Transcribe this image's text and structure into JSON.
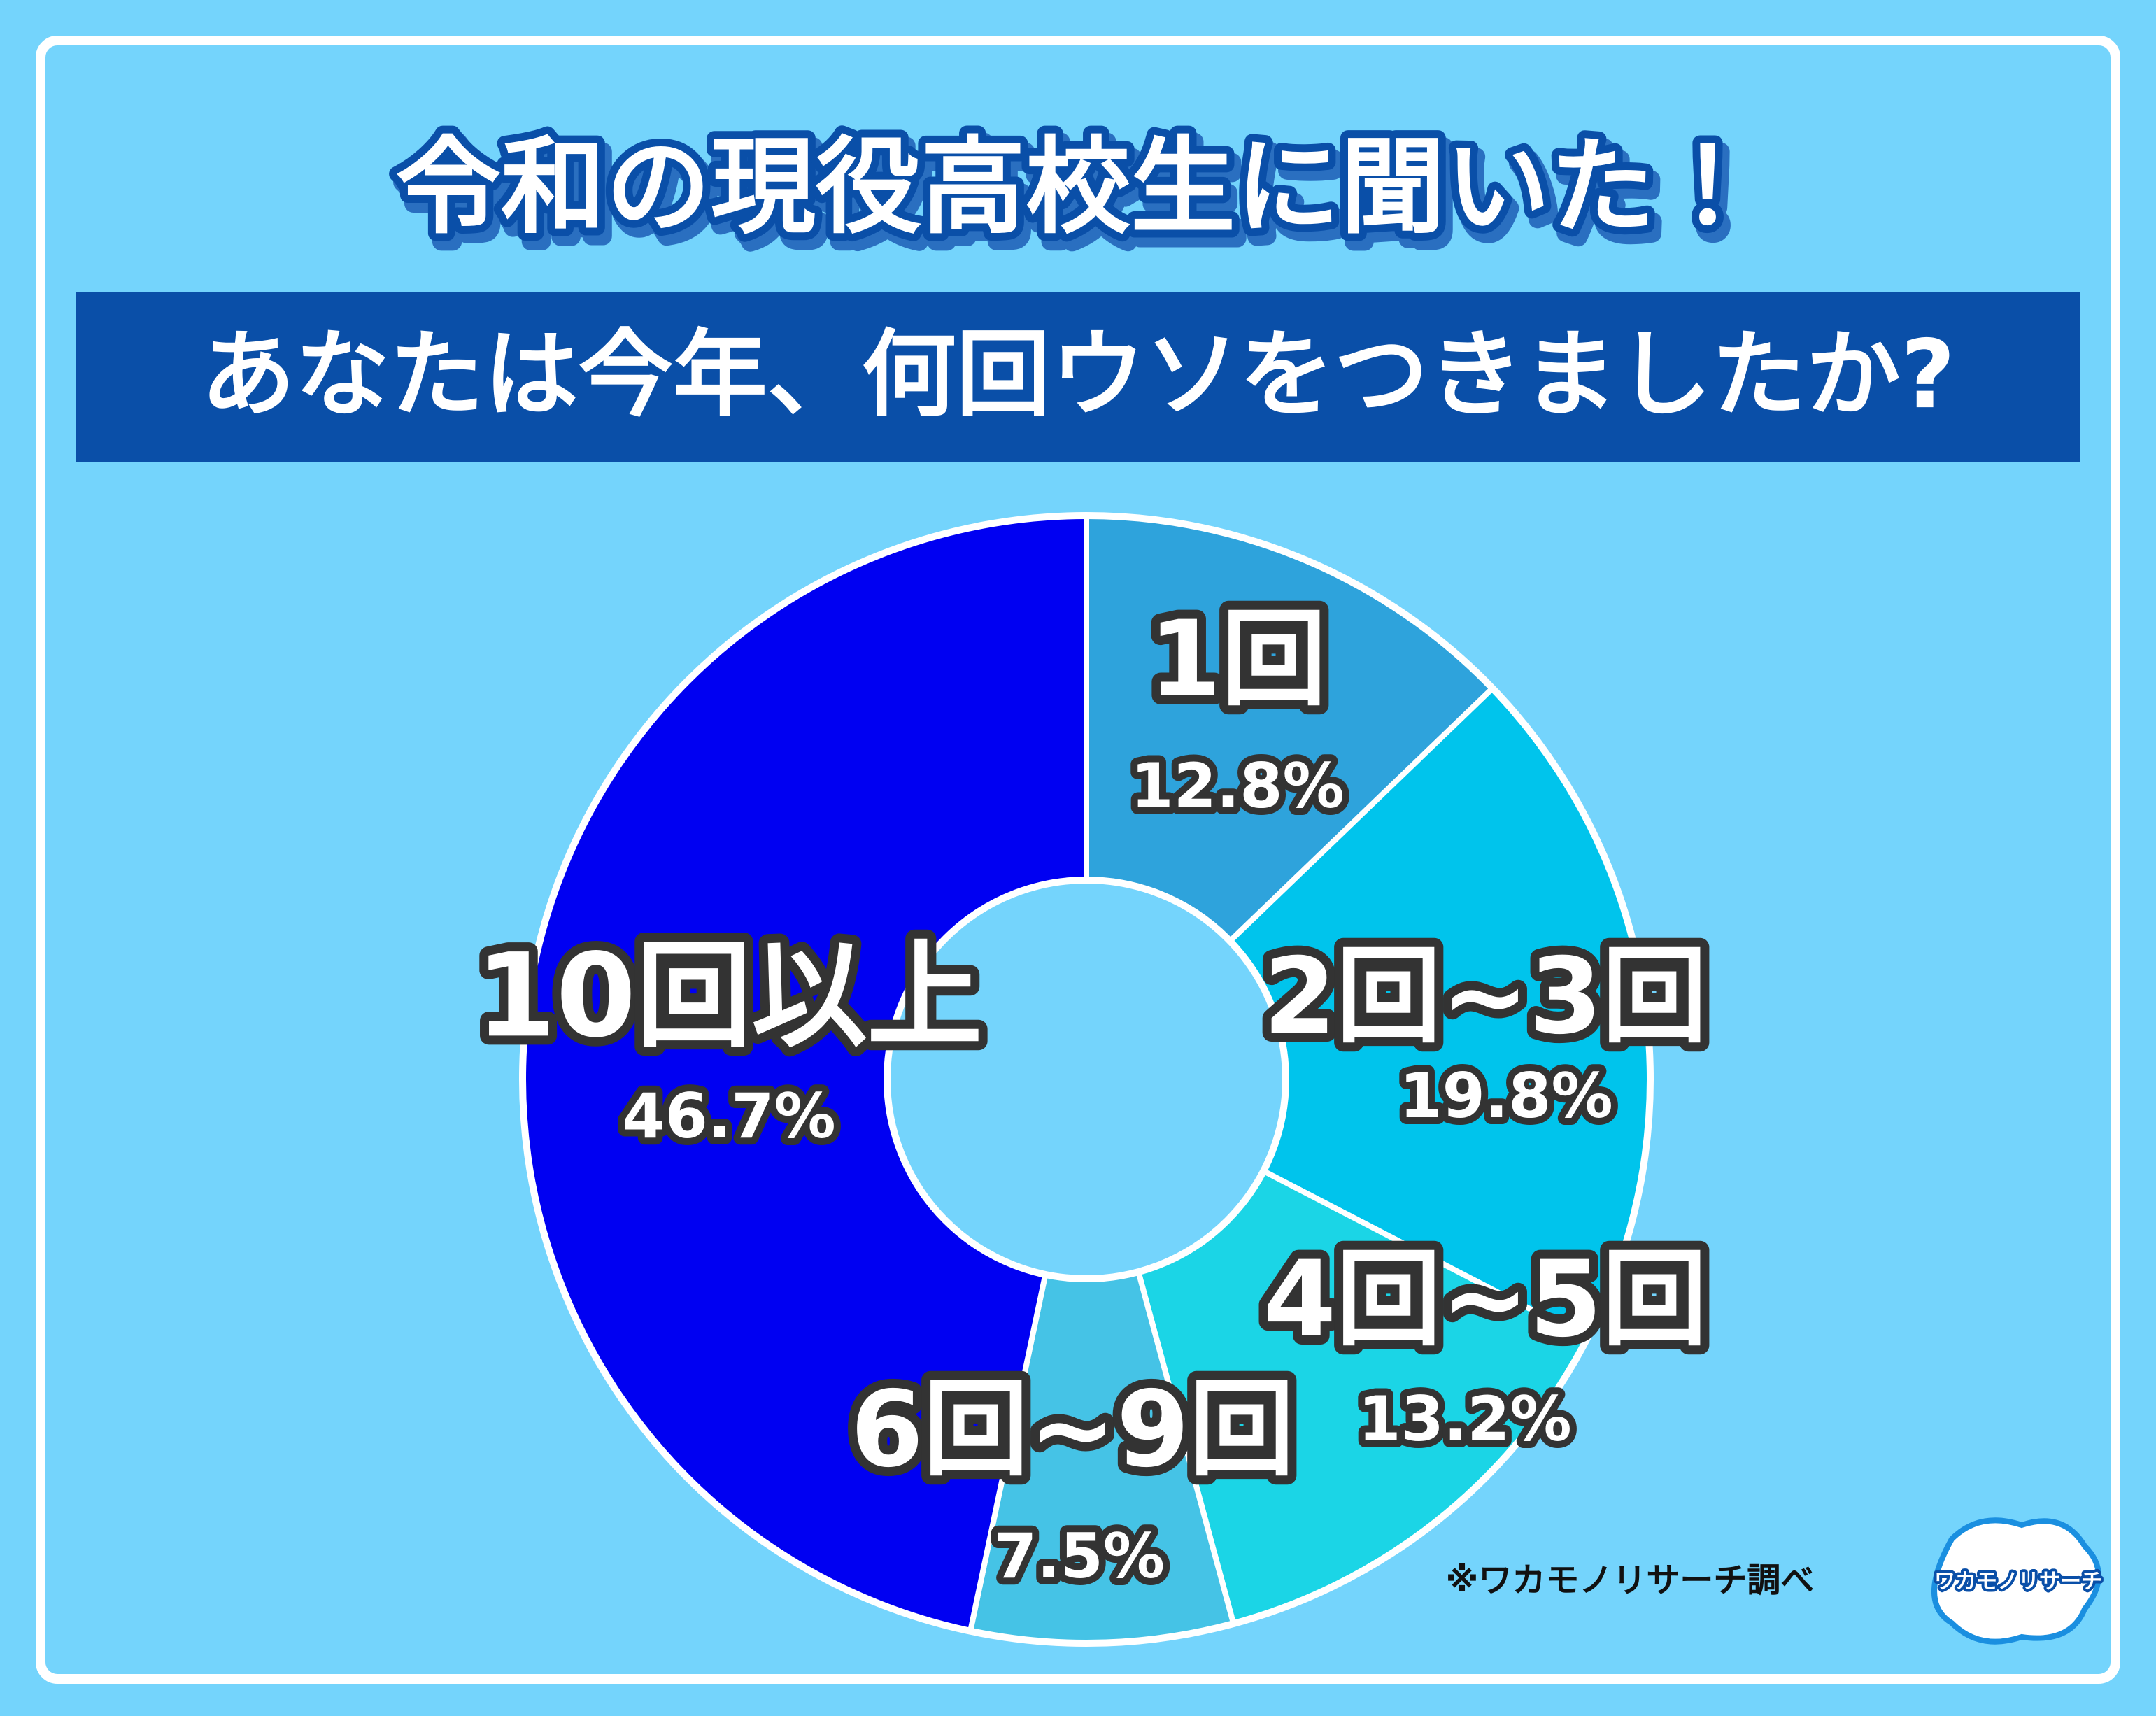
{
  "chart_data": {
    "type": "pie",
    "title": "令和の現役高校生に聞いた！",
    "subtitle": "あなたは今年、何回ウソをつきましたか?",
    "categories": [
      "1回",
      "2回~3回",
      "4回~5回",
      "6回~9回",
      "10回以上"
    ],
    "values": [
      12.8,
      19.8,
      13.2,
      7.5,
      46.7
    ],
    "value_labels": [
      "12.8%",
      "19.8%",
      "13.2%",
      "7.5%",
      "46.7%"
    ],
    "colors": [
      "#2ea3dc",
      "#00c4ec",
      "#1bd5e6",
      "#45c3e6",
      "#0000f2"
    ],
    "donut": true,
    "source": "※ワカモノリサーチ調べ",
    "logo": "ワカモノリサーチ"
  }
}
